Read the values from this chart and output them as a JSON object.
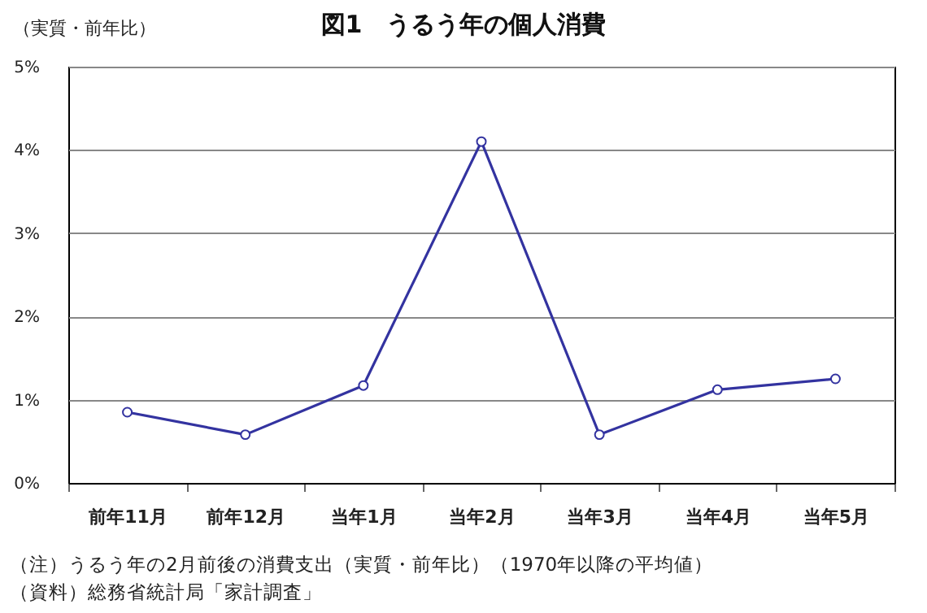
{
  "chart_data": {
    "type": "line",
    "title": "図1　うるう年の個人消費",
    "ylabel": "（実質・前年比）",
    "categories": [
      "前年11月",
      "前年12月",
      "当年1月",
      "当年2月",
      "当年3月",
      "当年4月",
      "当年5月"
    ],
    "series": [
      {
        "color": "#3333a0",
        "values": [
          0.85,
          0.58,
          1.17,
          4.1,
          0.58,
          1.12,
          1.25
        ]
      }
    ],
    "ylim": [
      0,
      5
    ],
    "yticks": [
      {
        "value": 0,
        "label": "0%"
      },
      {
        "value": 1,
        "label": "1%"
      },
      {
        "value": 2,
        "label": "2%"
      },
      {
        "value": 3,
        "label": "3%"
      },
      {
        "value": 4,
        "label": "4%"
      },
      {
        "value": 5,
        "label": "5%"
      }
    ],
    "grid": "y",
    "marker": "circle",
    "line_style": "solid",
    "annotations": [
      "（注）うるう年の2月前後の消費支出（実質・前年比）（1970年以降の平均値）",
      "（資料）総務省統計局「家計調査」"
    ]
  }
}
